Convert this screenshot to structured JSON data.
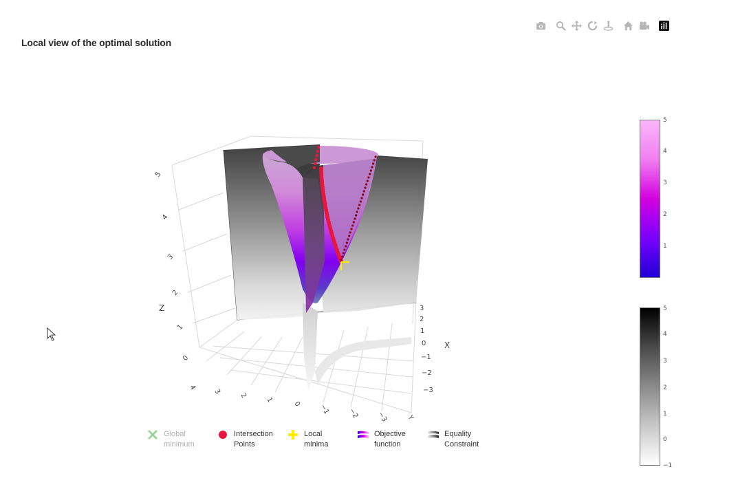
{
  "page": {
    "title": "Local view of the optimal solution"
  },
  "modebar": {
    "buttons": [
      {
        "name": "camera-icon",
        "tip": "Download plot as a png"
      },
      {
        "name": "zoom-icon",
        "tip": "Zoom"
      },
      {
        "name": "pan-icon",
        "tip": "Pan"
      },
      {
        "name": "orbit-icon",
        "tip": "Orbital rotation"
      },
      {
        "name": "turntable-icon",
        "tip": "Turntable rotation"
      },
      {
        "name": "home-icon",
        "tip": "Reset camera to default"
      },
      {
        "name": "video-camera-icon",
        "tip": "Reset camera to last save"
      },
      {
        "name": "plotly-logo-icon",
        "tip": "Produced with Plotly"
      }
    ]
  },
  "chart_data": {
    "type": "surface3d",
    "title": "Local view of the optimal solution",
    "axes": {
      "x": {
        "label": "X",
        "ticks": [
          "3",
          "2",
          "1",
          "0",
          "−1",
          "−2",
          "−3"
        ],
        "range": [
          -3.5,
          3.5
        ]
      },
      "y": {
        "label": "",
        "ticks": [
          "4",
          "3",
          "2",
          "1",
          "0",
          "−1",
          "−2",
          "−3",
          "Y"
        ],
        "range": [
          -4,
          4
        ]
      },
      "z": {
        "label": "Z",
        "ticks": [
          "0",
          "1",
          "2",
          "3",
          "4",
          "5"
        ],
        "range": [
          0,
          5
        ]
      }
    },
    "series": [
      {
        "name": "Global minimum",
        "kind": "marker",
        "symbol": "x",
        "color": "#7fc97f",
        "visible": false
      },
      {
        "name": "Intersection Points",
        "kind": "marker",
        "symbol": "circle",
        "color": "#e8163c",
        "visible": true
      },
      {
        "name": "Local minima",
        "kind": "marker",
        "symbol": "cross",
        "color": "#ffee00",
        "visible": true
      },
      {
        "name": "Objective function",
        "kind": "surface",
        "colorscale": [
          "#1f00d6",
          "#7a00ff",
          "#d400e0",
          "#f07ef0",
          "#fbb6fb"
        ],
        "visible": true
      },
      {
        "name": "Equality Constraint",
        "kind": "surface",
        "colorscale": [
          "#ffffff",
          "#c8c8c8",
          "#8a8a8a",
          "#4a4a4a",
          "#000000"
        ],
        "visible": true
      }
    ],
    "colorbars": [
      {
        "name": "objective-colorbar",
        "ticks": [
          "5",
          "4",
          "3",
          "2",
          "1"
        ],
        "range": [
          0,
          5
        ],
        "colors": [
          "#fbb6fb",
          "#f07ef0",
          "#d400e0",
          "#7a00ff",
          "#1f00d6"
        ]
      },
      {
        "name": "constraint-colorbar",
        "ticks": [
          "5",
          "4",
          "3",
          "2",
          "1",
          "0",
          "−1"
        ],
        "range": [
          -1,
          5
        ],
        "colors": [
          "#000000",
          "#4a4a4a",
          "#8a8a8a",
          "#c8c8c8",
          "#ffffff"
        ]
      }
    ]
  },
  "legend": {
    "items": [
      {
        "label_1": "Global",
        "label_2": "minimum"
      },
      {
        "label_1": "Intersection",
        "label_2": "Points"
      },
      {
        "label_1": "Local",
        "label_2": "minima"
      },
      {
        "label_1": "Objective",
        "label_2": "function"
      },
      {
        "label_1": "Equality",
        "label_2": "Constraint"
      }
    ]
  }
}
